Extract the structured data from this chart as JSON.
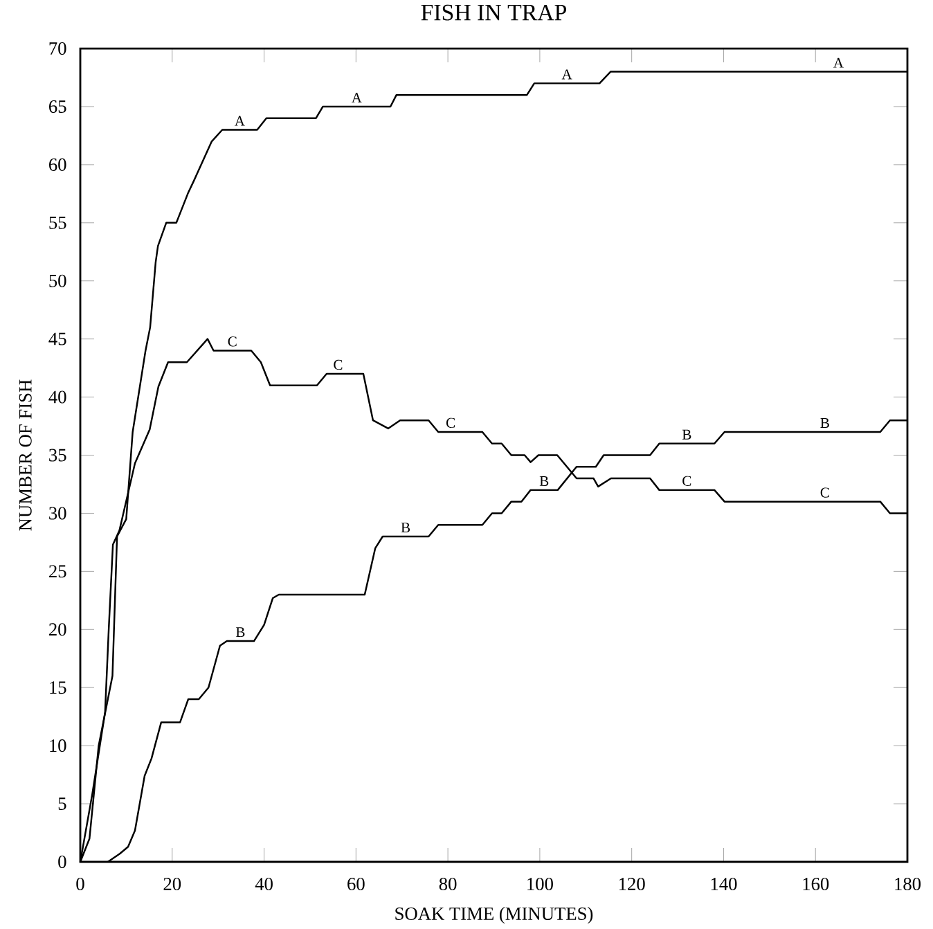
{
  "chart_data": {
    "type": "line",
    "title": "FISH IN TRAP",
    "xlabel": "SOAK TIME (MINUTES)",
    "ylabel": "NUMBER OF FISH",
    "xlim": [
      0,
      180
    ],
    "xticks": [
      0,
      20,
      40,
      60,
      80,
      100,
      120,
      140,
      160,
      180
    ],
    "ylim": [
      0,
      70
    ],
    "yticks": [
      0,
      5,
      10,
      15,
      20,
      25,
      30,
      35,
      40,
      45,
      50,
      55,
      60,
      65,
      70
    ],
    "grid": false,
    "legend": false,
    "marker": "none",
    "line_style": "solid",
    "series": [
      {
        "name": "A",
        "color": "#000000",
        "x": [
          0,
          2,
          4,
          7,
          8,
          10,
          11.4,
          14.2,
          15.2,
          16.4,
          16.9,
          18.7,
          20.9,
          23.5,
          24.7,
          28.6,
          30.9,
          38.5,
          40.5,
          51.3,
          52.8,
          67.5,
          68.8,
          97.2,
          98.8,
          113,
          115.4,
          150,
          180
        ],
        "values": [
          0,
          2,
          10,
          16,
          28,
          29.5,
          37,
          44,
          46,
          51.6,
          53,
          55,
          55,
          57.6,
          58.6,
          62,
          63,
          63,
          64,
          64,
          65,
          65,
          66,
          66,
          67,
          67,
          68,
          68,
          68
        ]
      },
      {
        "name": "B",
        "color": "#000000",
        "x": [
          6,
          8.6,
          10.4,
          11.9,
          14,
          15.5,
          17.6,
          21.7,
          23.5,
          25.8,
          27.9,
          30.4,
          31.9,
          37.8,
          40,
          41.9,
          43.2,
          61.9,
          64.2,
          65.8,
          75.8,
          77.9,
          87.5,
          89.6,
          91.7,
          93.8,
          96,
          98,
          103.9,
          108,
          112.2,
          113.9,
          124,
          126,
          138,
          140.2,
          150,
          174.1,
          176.2,
          180
        ],
        "values": [
          0,
          0.7,
          1.3,
          2.7,
          7.4,
          8.9,
          12,
          12,
          14,
          14,
          15,
          18.6,
          19,
          19,
          20.4,
          22.7,
          23,
          23,
          27,
          28,
          28,
          29,
          29,
          30,
          30,
          31,
          31,
          32,
          32,
          34,
          34,
          35,
          35,
          36,
          36,
          37,
          37,
          37,
          38,
          38
        ]
      },
      {
        "name": "C",
        "color": "#000000",
        "x": [
          0,
          2.6,
          5.4,
          6.2,
          7.1,
          8.5,
          11.9,
          15.1,
          17,
          19.1,
          23.2,
          27.7,
          29,
          37.2,
          39.3,
          41.3,
          51.5,
          53.6,
          58.6,
          61.6,
          63.7,
          67,
          69.6,
          75.8,
          77.9,
          83.3,
          87.5,
          89.6,
          91.7,
          93.8,
          96.7,
          98,
          99.7,
          103.8,
          108,
          111.7,
          112.7,
          115.5,
          124,
          126,
          138,
          140.2,
          150,
          174.1,
          176.2,
          180
        ],
        "values": [
          0,
          5.8,
          12.9,
          20.1,
          27.3,
          28.5,
          34.3,
          37.2,
          40.9,
          43,
          43,
          45,
          44,
          44,
          43,
          41,
          41,
          42,
          42,
          42,
          38,
          37.3,
          38,
          38,
          37,
          37,
          37,
          36,
          36,
          35,
          35,
          34.4,
          35,
          35,
          33,
          33,
          32.3,
          33,
          33,
          32,
          32,
          31,
          31,
          31,
          30,
          30
        ]
      }
    ]
  }
}
